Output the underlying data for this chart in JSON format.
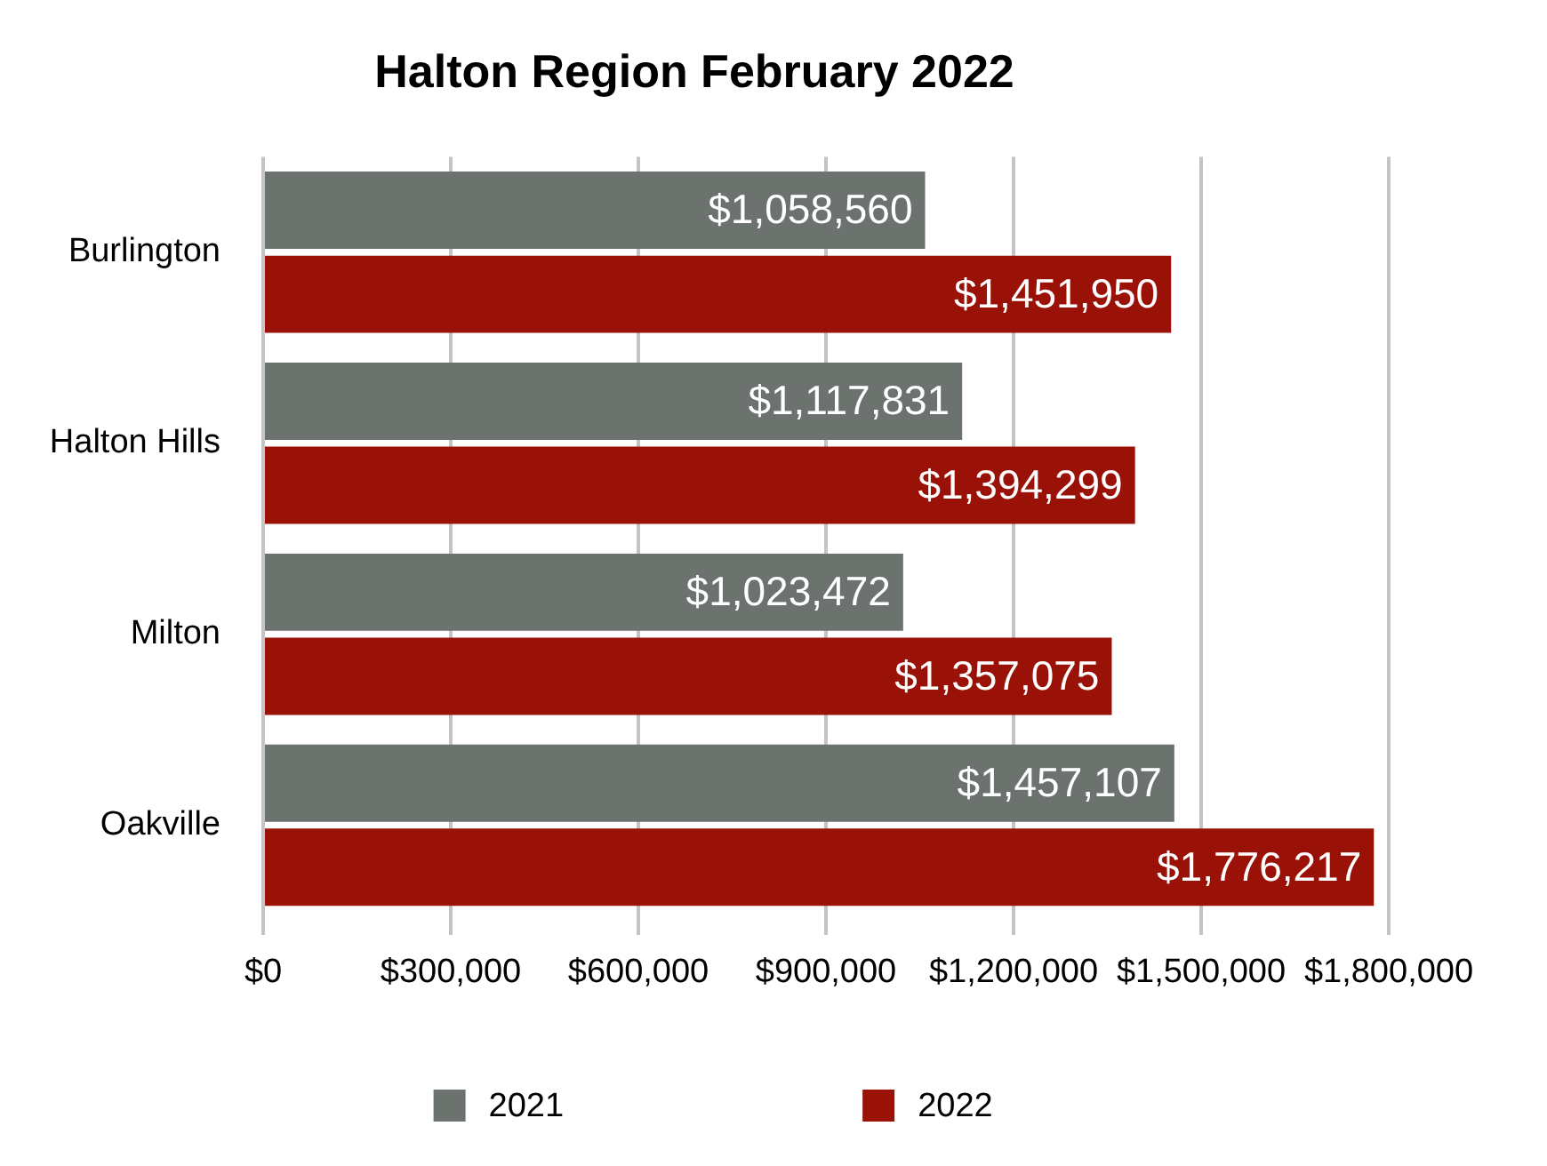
{
  "chart_data": {
    "type": "bar",
    "orientation": "horizontal",
    "title": "Halton Region February 2022",
    "categories": [
      "Burlington",
      "Halton Hills",
      "Milton",
      "Oakville"
    ],
    "series": [
      {
        "name": "2021",
        "color": "#6c736f",
        "values": [
          1058560,
          1117831,
          1023472,
          1457107
        ],
        "value_labels": [
          "$1,058,560",
          "$1,117,831",
          "$1,023,472",
          "$1,457,107"
        ]
      },
      {
        "name": "2022",
        "color": "#9a1207",
        "values": [
          1451950,
          1394299,
          1357075,
          1776217
        ],
        "value_labels": [
          "$1,451,950",
          "$1,394,299",
          "$1,357,075",
          "$1,776,217"
        ]
      }
    ],
    "xlim": [
      0,
      1800000
    ],
    "xticks": [
      {
        "value": 0,
        "label": "$0"
      },
      {
        "value": 300000,
        "label": "$300,000"
      },
      {
        "value": 600000,
        "label": "$600,000"
      },
      {
        "value": 900000,
        "label": "$900,000"
      },
      {
        "value": 1200000,
        "label": "$1,200,000"
      },
      {
        "value": 1500000,
        "label": "$1,500,000"
      },
      {
        "value": 1800000,
        "label": "$1,800,000"
      }
    ],
    "grid": "x",
    "legend": "bottom"
  }
}
